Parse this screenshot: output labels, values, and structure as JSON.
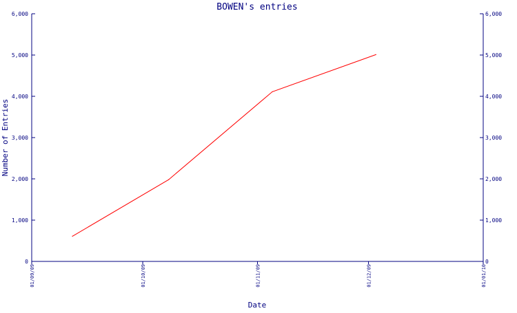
{
  "chart_data": {
    "type": "line",
    "title": "BOWEN's entries",
    "xlabel": "Date",
    "ylabel": "Number of Entries",
    "x_ticks": [
      "01/09/09",
      "01/10/09",
      "01/11/09",
      "01/12/09",
      "01/01/10"
    ],
    "x_tick_dates": [
      "2009-09-01",
      "2009-10-01",
      "2009-11-01",
      "2009-12-01",
      "2010-01-01"
    ],
    "xlim": [
      "2009-09-01",
      "2010-01-01"
    ],
    "ylim": [
      0,
      6000
    ],
    "y_ticks": [
      0,
      1000,
      2000,
      3000,
      4000,
      5000,
      6000
    ],
    "y_tick_labels": [
      "0",
      "1,000",
      "2,000",
      "3,000",
      "4,000",
      "5,000",
      "6,000"
    ],
    "right_axis": true,
    "grid": false,
    "series": [
      {
        "color": "#ff0000",
        "x": [
          "2009-09-12",
          "2009-10-08",
          "2009-11-05",
          "2009-12-03"
        ],
        "y": [
          610,
          1980,
          4110,
          5010
        ]
      }
    ]
  }
}
